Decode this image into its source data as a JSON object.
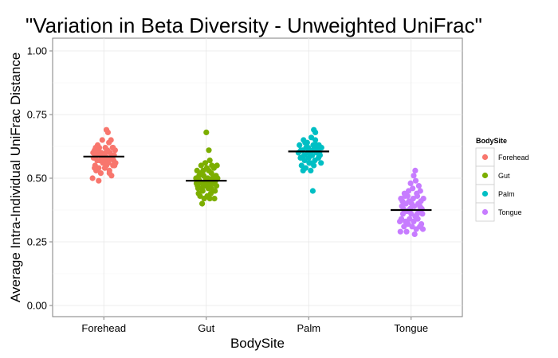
{
  "chart_data": {
    "type": "scatter",
    "title": "\"Variation in Beta Diversity - Unweighted UniFrac\"",
    "xlabel": "BodySite",
    "ylabel": "Average Intra-Individual UniFrac Distance",
    "categories": [
      "Forehead",
      "Gut",
      "Palm",
      "Tongue"
    ],
    "ylim": [
      0,
      1
    ],
    "yticks": [
      0.0,
      0.25,
      0.5,
      0.75,
      1.0
    ],
    "ytick_labels": [
      "0.00",
      "0.25",
      "0.50",
      "0.75",
      "1.00"
    ],
    "grid": true,
    "legend": {
      "title": "BodySite",
      "position": "right"
    },
    "series": [
      {
        "name": "Forehead",
        "color": "#F8766D",
        "mean": 0.585,
        "points": [
          [
            -0.18,
            0.61
          ],
          [
            -0.12,
            0.63
          ],
          [
            -0.05,
            0.6
          ],
          [
            0.03,
            0.62
          ],
          [
            0.1,
            0.64
          ],
          [
            0.17,
            0.62
          ],
          [
            0.22,
            0.61
          ],
          [
            -0.2,
            0.58
          ],
          [
            -0.14,
            0.59
          ],
          [
            -0.08,
            0.57
          ],
          [
            0.0,
            0.59
          ],
          [
            0.06,
            0.58
          ],
          [
            0.12,
            0.6
          ],
          [
            0.19,
            0.57
          ],
          [
            -0.17,
            0.55
          ],
          [
            -0.1,
            0.54
          ],
          [
            -0.02,
            0.56
          ],
          [
            0.05,
            0.55
          ],
          [
            0.11,
            0.53
          ],
          [
            0.18,
            0.55
          ],
          [
            0.23,
            0.56
          ],
          [
            -0.15,
            0.53
          ],
          [
            -0.06,
            0.52
          ],
          [
            0.02,
            0.54
          ],
          [
            0.08,
            0.57
          ],
          [
            0.15,
            0.51
          ],
          [
            -0.21,
            0.6
          ],
          [
            0.2,
            0.59
          ],
          [
            -0.09,
            0.62
          ],
          [
            -0.03,
            0.65
          ],
          [
            0.13,
            0.58
          ],
          [
            0.07,
            0.61
          ],
          [
            -0.13,
            0.57
          ],
          [
            0.01,
            0.57
          ],
          [
            -0.18,
            0.54
          ],
          [
            0.16,
            0.59
          ],
          [
            -0.04,
            0.58
          ],
          [
            0.09,
            0.56
          ],
          [
            -0.11,
            0.6
          ],
          [
            0.04,
            0.6
          ],
          [
            0.21,
            0.55
          ],
          [
            -0.07,
            0.59
          ],
          [
            -0.22,
            0.5
          ],
          [
            -0.1,
            0.49
          ],
          [
            0.05,
            0.69
          ],
          [
            0.08,
            0.68
          ],
          [
            0.14,
            0.65
          ],
          [
            0.11,
            0.52
          ],
          [
            -0.16,
            0.62
          ],
          [
            0.18,
            0.62
          ]
        ]
      },
      {
        "name": "Gut",
        "color": "#7CAE00",
        "mean": 0.49,
        "points": [
          [
            -0.18,
            0.53
          ],
          [
            -0.1,
            0.55
          ],
          [
            -0.02,
            0.56
          ],
          [
            0.07,
            0.57
          ],
          [
            0.15,
            0.54
          ],
          [
            0.21,
            0.55
          ],
          [
            -0.2,
            0.5
          ],
          [
            -0.13,
            0.49
          ],
          [
            -0.05,
            0.51
          ],
          [
            0.03,
            0.5
          ],
          [
            0.1,
            0.52
          ],
          [
            0.18,
            0.49
          ],
          [
            -0.17,
            0.47
          ],
          [
            -0.09,
            0.46
          ],
          [
            0.0,
            0.48
          ],
          [
            0.06,
            0.47
          ],
          [
            0.13,
            0.45
          ],
          [
            0.2,
            0.47
          ],
          [
            -0.15,
            0.44
          ],
          [
            -0.07,
            0.45
          ],
          [
            0.02,
            0.43
          ],
          [
            0.09,
            0.44
          ],
          [
            0.16,
            0.42
          ],
          [
            -0.04,
            0.42
          ],
          [
            -0.11,
            0.52
          ],
          [
            0.05,
            0.53
          ],
          [
            0.12,
            0.5
          ],
          [
            -0.19,
            0.48
          ],
          [
            0.19,
            0.51
          ],
          [
            -0.01,
            0.5
          ],
          [
            0.08,
            0.49
          ],
          [
            -0.14,
            0.51
          ],
          [
            0.14,
            0.48
          ],
          [
            -0.08,
            0.48
          ],
          [
            0.04,
            0.46
          ],
          [
            -0.03,
            0.47
          ],
          [
            0.1,
            0.46
          ],
          [
            -0.16,
            0.46
          ],
          [
            0.17,
            0.45
          ],
          [
            -0.06,
            0.53
          ],
          [
            0.01,
            0.54
          ],
          [
            0.11,
            0.55
          ],
          [
            -0.12,
            0.43
          ],
          [
            0.07,
            0.42
          ],
          [
            -0.08,
            0.4
          ],
          [
            0.05,
            0.61
          ],
          [
            0.0,
            0.68
          ],
          [
            0.22,
            0.5
          ]
        ]
      },
      {
        "name": "Palm",
        "color": "#00BFC4",
        "mean": 0.605,
        "points": [
          [
            -0.18,
            0.63
          ],
          [
            -0.1,
            0.65
          ],
          [
            -0.03,
            0.64
          ],
          [
            0.05,
            0.66
          ],
          [
            0.13,
            0.65
          ],
          [
            0.2,
            0.63
          ],
          [
            0.25,
            0.62
          ],
          [
            -0.2,
            0.6
          ],
          [
            -0.12,
            0.61
          ],
          [
            -0.05,
            0.62
          ],
          [
            0.02,
            0.6
          ],
          [
            0.08,
            0.61
          ],
          [
            0.16,
            0.6
          ],
          [
            0.22,
            0.59
          ],
          [
            -0.16,
            0.58
          ],
          [
            -0.08,
            0.57
          ],
          [
            0.0,
            0.58
          ],
          [
            0.06,
            0.59
          ],
          [
            0.12,
            0.57
          ],
          [
            0.19,
            0.58
          ],
          [
            0.24,
            0.56
          ],
          [
            -0.14,
            0.55
          ],
          [
            -0.06,
            0.54
          ],
          [
            0.03,
            0.56
          ],
          [
            0.1,
            0.55
          ],
          [
            -0.11,
            0.53
          ],
          [
            0.04,
            0.53
          ],
          [
            -0.01,
            0.62
          ],
          [
            0.15,
            0.63
          ],
          [
            -0.07,
            0.64
          ],
          [
            0.09,
            0.63
          ],
          [
            0.18,
            0.61
          ],
          [
            -0.15,
            0.61
          ],
          [
            0.11,
            0.62
          ],
          [
            -0.02,
            0.6
          ],
          [
            0.07,
            0.59
          ],
          [
            -0.09,
            0.59
          ],
          [
            0.21,
            0.6
          ],
          [
            0.13,
            0.68
          ],
          [
            0.1,
            0.69
          ],
          [
            0.08,
            0.45
          ],
          [
            0.01,
            0.56
          ]
        ]
      },
      {
        "name": "Tongue",
        "color": "#C77CFF",
        "mean": 0.375,
        "points": [
          [
            -0.2,
            0.42
          ],
          [
            -0.12,
            0.43
          ],
          [
            -0.04,
            0.41
          ],
          [
            0.04,
            0.42
          ],
          [
            0.12,
            0.43
          ],
          [
            0.19,
            0.41
          ],
          [
            -0.18,
            0.39
          ],
          [
            -0.1,
            0.4
          ],
          [
            -0.02,
            0.38
          ],
          [
            0.06,
            0.39
          ],
          [
            0.14,
            0.4
          ],
          [
            0.21,
            0.38
          ],
          [
            -0.16,
            0.36
          ],
          [
            -0.08,
            0.37
          ],
          [
            0.0,
            0.36
          ],
          [
            0.08,
            0.35
          ],
          [
            0.16,
            0.37
          ],
          [
            0.22,
            0.36
          ],
          [
            -0.19,
            0.34
          ],
          [
            -0.11,
            0.33
          ],
          [
            -0.03,
            0.34
          ],
          [
            0.05,
            0.33
          ],
          [
            0.13,
            0.34
          ],
          [
            0.2,
            0.32
          ],
          [
            -0.14,
            0.31
          ],
          [
            -0.06,
            0.32
          ],
          [
            0.02,
            0.31
          ],
          [
            0.1,
            0.3
          ],
          [
            0.17,
            0.31
          ],
          [
            -0.21,
            0.29
          ],
          [
            -0.09,
            0.29
          ],
          [
            0.07,
            0.28
          ],
          [
            0.23,
            0.3
          ],
          [
            -0.05,
            0.45
          ],
          [
            0.03,
            0.46
          ],
          [
            0.11,
            0.44
          ],
          [
            -0.13,
            0.44
          ],
          [
            0.18,
            0.45
          ],
          [
            -0.01,
            0.48
          ],
          [
            0.09,
            0.49
          ],
          [
            0.15,
            0.47
          ],
          [
            0.05,
            0.51
          ],
          [
            0.08,
            0.53
          ],
          [
            -0.07,
            0.43
          ],
          [
            0.01,
            0.4
          ],
          [
            -0.15,
            0.38
          ],
          [
            0.17,
            0.39
          ],
          [
            -0.03,
            0.37
          ],
          [
            0.12,
            0.36
          ],
          [
            -0.17,
            0.41
          ],
          [
            0.24,
            0.42
          ],
          [
            -0.22,
            0.33
          ]
        ]
      }
    ]
  }
}
